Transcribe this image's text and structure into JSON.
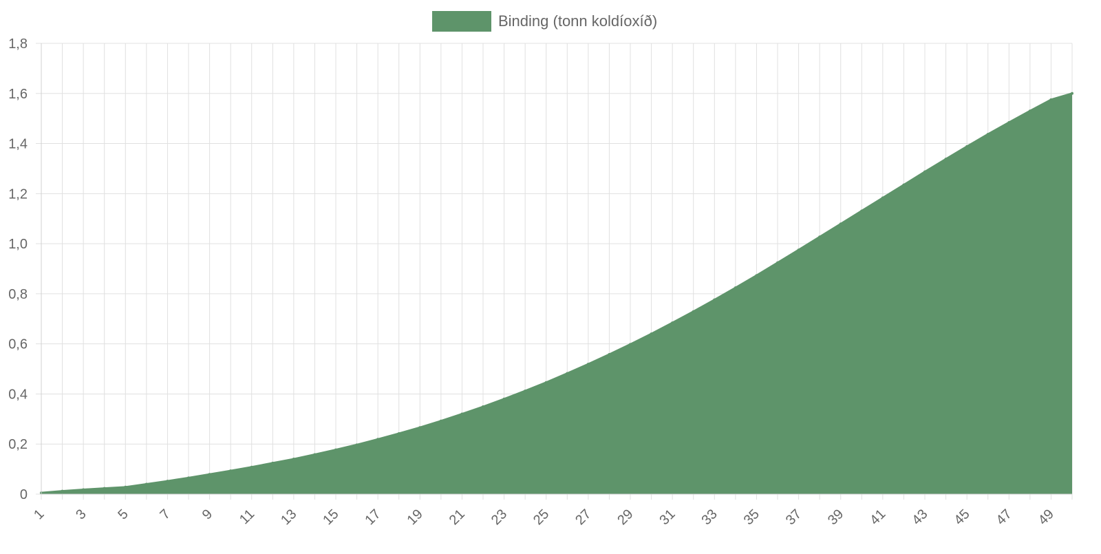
{
  "colors": {
    "series_fill": "#5e946a",
    "series_line": "#5e946a",
    "grid": "#e0e0e0",
    "text": "#666666"
  },
  "chart_data": {
    "type": "area",
    "title": "",
    "xlabel": "",
    "ylabel": "",
    "legend_position": "top-center",
    "grid": true,
    "x": [
      1,
      2,
      3,
      4,
      5,
      6,
      7,
      8,
      9,
      10,
      11,
      12,
      13,
      14,
      15,
      16,
      17,
      18,
      19,
      20,
      21,
      22,
      23,
      24,
      25,
      26,
      27,
      28,
      29,
      30,
      31,
      32,
      33,
      34,
      35,
      36,
      37,
      38,
      39,
      40,
      41,
      42,
      43,
      44,
      45,
      46,
      47,
      48,
      49,
      50
    ],
    "x_tick_labels": [
      "1",
      "3",
      "5",
      "7",
      "9",
      "11",
      "13",
      "15",
      "17",
      "19",
      "21",
      "23",
      "25",
      "27",
      "29",
      "31",
      "33",
      "35",
      "37",
      "39",
      "41",
      "43",
      "45",
      "47",
      "49"
    ],
    "ylim": [
      0,
      1.8
    ],
    "y_tick_labels": [
      "0",
      "0,2",
      "0,4",
      "0,6",
      "0,8",
      "1,0",
      "1,2",
      "1,4",
      "1,6",
      "1,8"
    ],
    "series": [
      {
        "name": "Binding (tonn koldíoxíð)",
        "values": [
          0.005,
          0.012,
          0.018,
          0.023,
          0.028,
          0.04,
          0.052,
          0.065,
          0.079,
          0.093,
          0.108,
          0.124,
          0.14,
          0.158,
          0.177,
          0.197,
          0.219,
          0.242,
          0.266,
          0.292,
          0.32,
          0.349,
          0.38,
          0.412,
          0.446,
          0.482,
          0.519,
          0.558,
          0.598,
          0.64,
          0.684,
          0.729,
          0.776,
          0.824,
          0.873,
          0.924,
          0.975,
          1.027,
          1.079,
          1.131,
          1.183,
          1.235,
          1.287,
          1.338,
          1.388,
          1.437,
          1.484,
          1.53,
          1.575,
          1.6
        ]
      }
    ]
  }
}
